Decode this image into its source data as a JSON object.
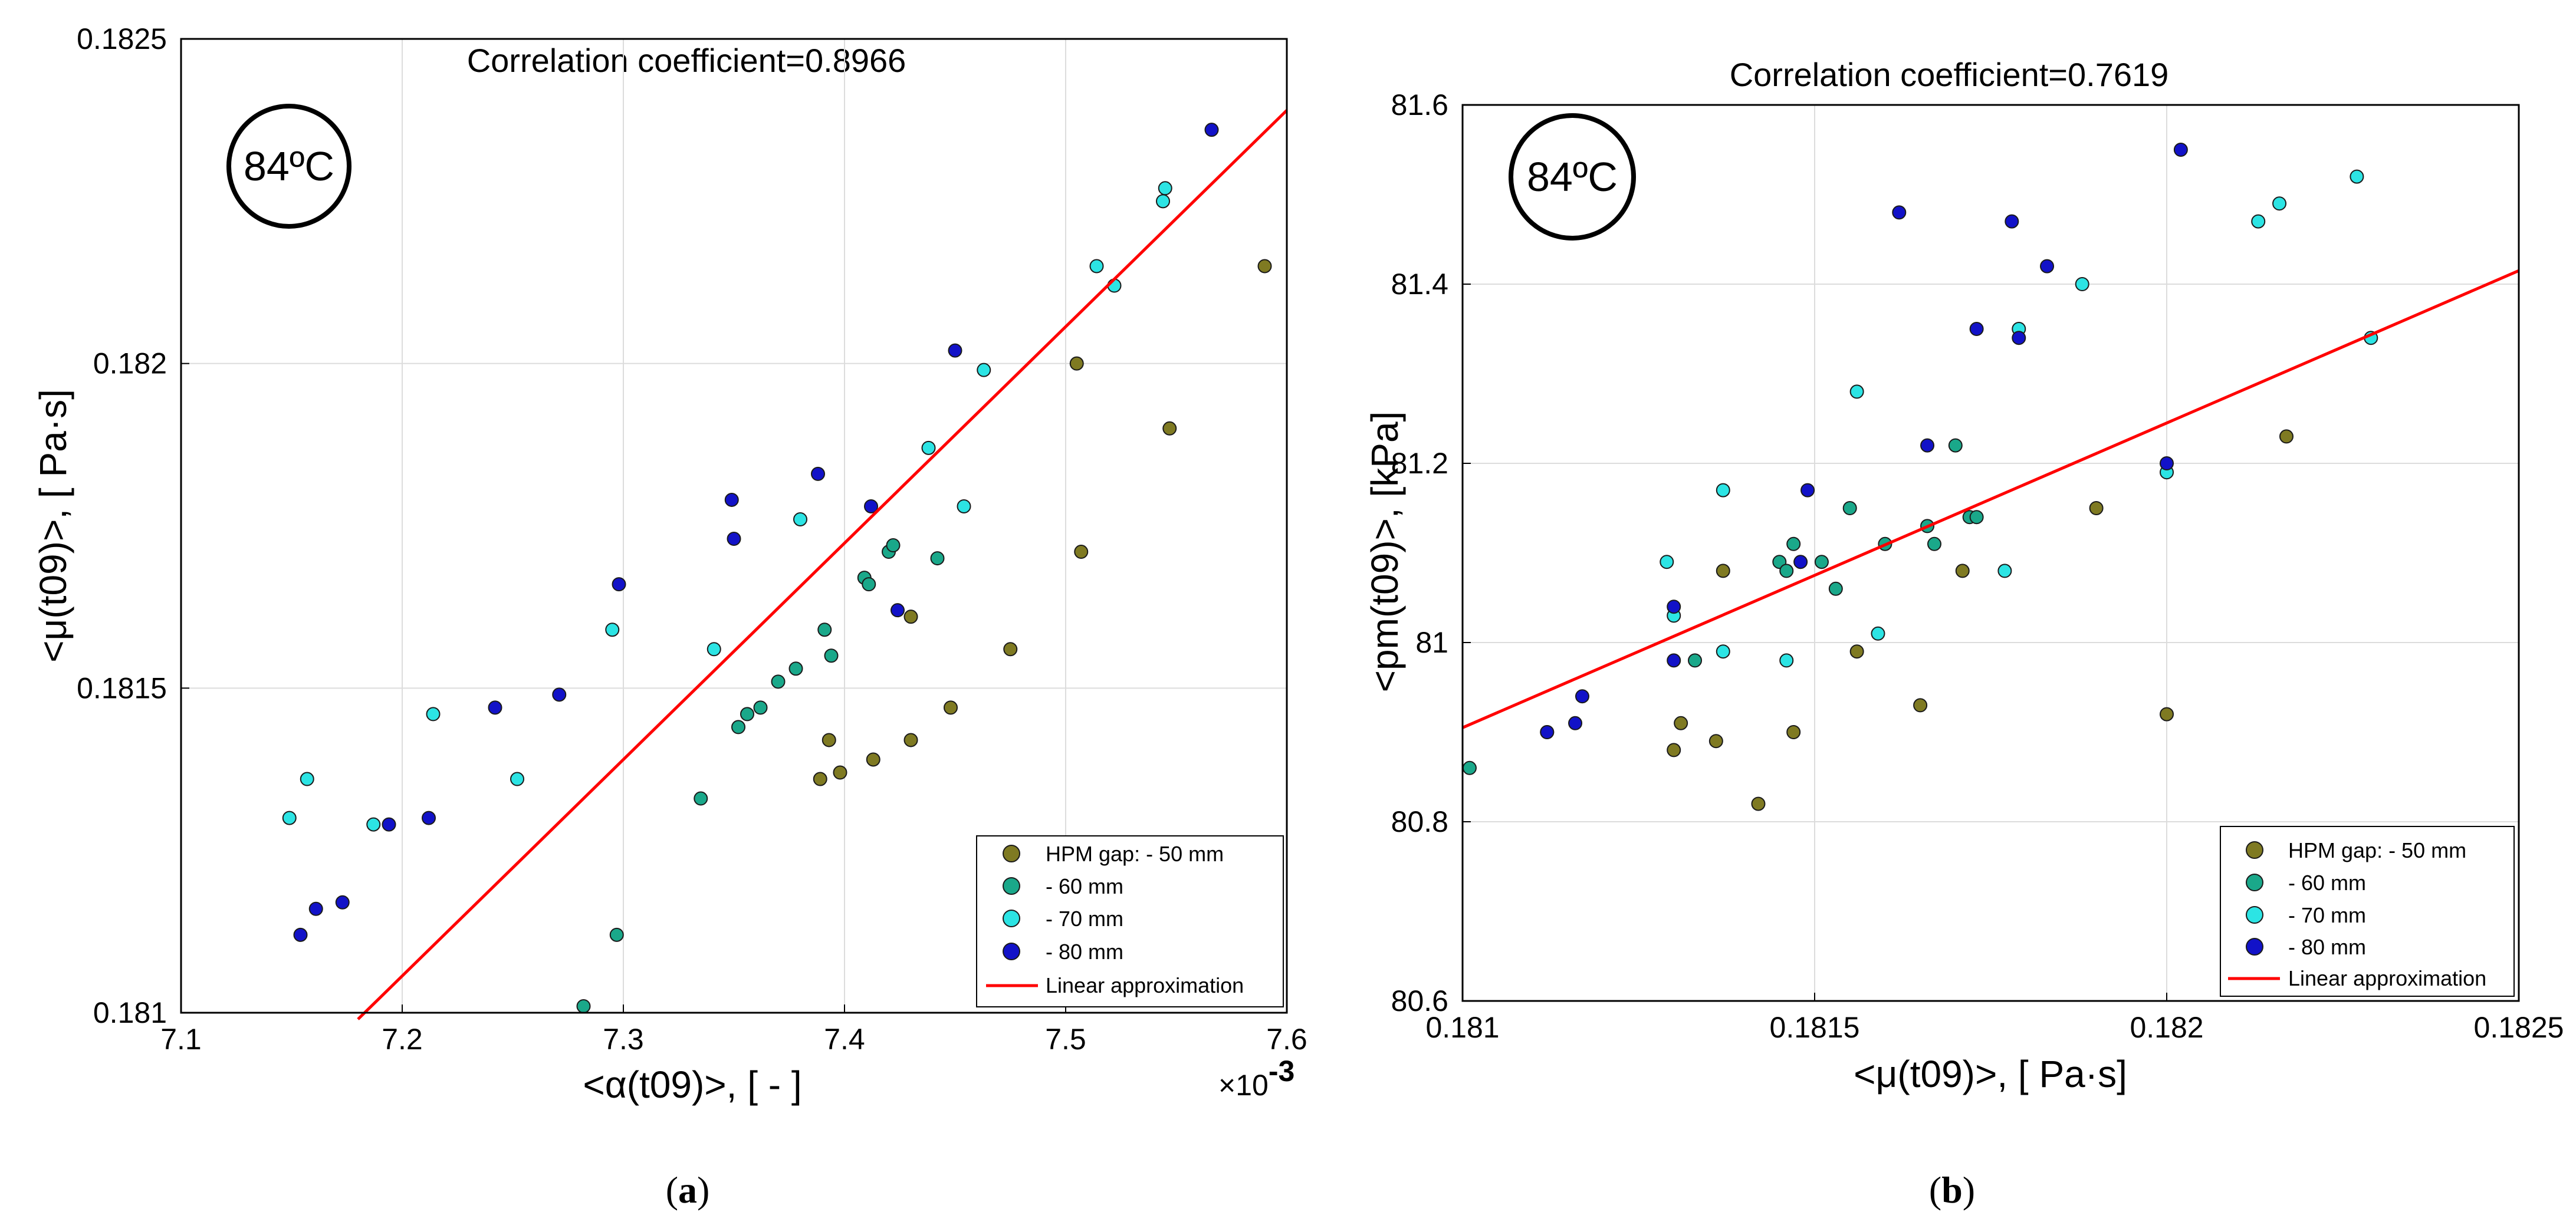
{
  "chart_data": [
    {
      "type": "scatter",
      "title": "Correlation coefficient=0.8966",
      "xlabel": "<α(t09)>, [ - ]",
      "ylabel": "<μ(t09)>, [ Pa·s]",
      "x_multiplier": "×10",
      "x_multiplier_exp": "-3",
      "xlim": [
        7.1,
        7.6
      ],
      "ylim": [
        0.181,
        0.1825
      ],
      "x_tick_labels": [
        "7.1",
        "7.2",
        "7.3",
        "7.4",
        "7.5",
        "7.6"
      ],
      "y_tick_labels": [
        "0.181",
        "0.1815",
        "0.182",
        "0.1825"
      ],
      "grid": true,
      "badge": "84ºC",
      "caption": "a",
      "legend_position": "bottom-right",
      "series": [
        {
          "name": "HPM gap: - 50 mm",
          "color": "#7f7a22",
          "x": [
            7.59,
            7.505,
            7.547,
            7.507,
            7.43,
            7.475,
            7.448,
            7.43,
            7.413,
            7.393,
            7.389,
            7.398
          ],
          "y": [
            0.18215,
            0.182,
            0.1819,
            0.18171,
            0.18161,
            0.18156,
            0.18147,
            0.18142,
            0.18139,
            0.18142,
            0.18136,
            0.18137
          ]
        },
        {
          "name": " - 60 mm",
          "color": "#1aa88a",
          "x": [
            7.282,
            7.297,
            7.335,
            7.352,
            7.356,
            7.362,
            7.37,
            7.378,
            7.391,
            7.394,
            7.409,
            7.411,
            7.42,
            7.422,
            7.442
          ],
          "y": [
            0.18101,
            0.18112,
            0.18133,
            0.18144,
            0.18146,
            0.18147,
            0.18151,
            0.18153,
            0.18159,
            0.18155,
            0.18167,
            0.18166,
            0.18171,
            0.18172,
            0.1817
          ]
        },
        {
          "name": " - 70 mm",
          "color": "#2ce4e4",
          "x": [
            7.149,
            7.157,
            7.187,
            7.214,
            7.252,
            7.295,
            7.341,
            7.38,
            7.438,
            7.454,
            7.463,
            7.514,
            7.522,
            7.544,
            7.545
          ],
          "y": [
            0.1813,
            0.18136,
            0.18129,
            0.18146,
            0.18136,
            0.18159,
            0.18156,
            0.18176,
            0.18187,
            0.18178,
            0.18199,
            0.18215,
            0.18212,
            0.18225,
            0.18227
          ]
        },
        {
          "name": " - 80 mm",
          "color": "#1212c8",
          "x": [
            7.154,
            7.161,
            7.173,
            7.194,
            7.212,
            7.242,
            7.271,
            7.298,
            7.349,
            7.35,
            7.388,
            7.412,
            7.424,
            7.45,
            7.566
          ],
          "y": [
            0.18112,
            0.18116,
            0.18117,
            0.18129,
            0.1813,
            0.18147,
            0.18149,
            0.18166,
            0.18179,
            0.18173,
            0.18183,
            0.18178,
            0.18162,
            0.18202,
            0.18236
          ]
        }
      ],
      "fit": {
        "name": "Linear approximation",
        "color": "#ff0000",
        "x": [
          7.18,
          7.6
        ],
        "y": [
          0.18099,
          0.18239
        ]
      }
    },
    {
      "type": "scatter",
      "title": "Correlation coefficient=0.7619",
      "xlabel": "<μ(t09)>, [ Pa·s]",
      "ylabel": "<pm(t09)>, [kPa]",
      "xlim": [
        0.181,
        0.1825
      ],
      "ylim": [
        80.6,
        81.6
      ],
      "x_tick_labels": [
        "0.181",
        "0.1815",
        "0.182",
        "0.1825"
      ],
      "y_tick_labels": [
        "80.6",
        "80.8",
        "81",
        "81.2",
        "81.4",
        "81.6"
      ],
      "grid": true,
      "badge": "84ºC",
      "caption": "b",
      "legend_position": "bottom-right",
      "series": [
        {
          "name": "HPM gap: - 50 mm",
          "color": "#7f7a22",
          "x": [
            0.1813,
            0.18131,
            0.18136,
            0.18137,
            0.18142,
            0.18147,
            0.18156,
            0.18165,
            0.18171,
            0.1819,
            0.182,
            0.18217
          ],
          "y": [
            80.88,
            80.91,
            80.89,
            81.08,
            80.82,
            80.9,
            80.99,
            80.93,
            81.08,
            81.15,
            80.92,
            81.23
          ]
        },
        {
          "name": " - 60 mm",
          "color": "#1aa88a",
          "x": [
            0.18101,
            0.18112,
            0.18133,
            0.18145,
            0.18146,
            0.18147,
            0.18151,
            0.18153,
            0.18155,
            0.1816,
            0.18166,
            0.18167,
            0.1817,
            0.18172,
            0.18173
          ],
          "y": [
            80.86,
            80.9,
            80.98,
            81.09,
            81.08,
            81.11,
            81.09,
            81.06,
            81.15,
            81.11,
            81.13,
            81.11,
            81.22,
            81.14,
            81.14
          ]
        },
        {
          "name": " - 70 mm",
          "color": "#2ce4e4",
          "x": [
            0.18129,
            0.1813,
            0.18137,
            0.18137,
            0.18146,
            0.18156,
            0.18159,
            0.18177,
            0.18179,
            0.18188,
            0.182,
            0.18213,
            0.18216,
            0.18227,
            0.18229
          ],
          "y": [
            81.09,
            81.03,
            80.99,
            81.17,
            80.98,
            81.28,
            81.01,
            81.08,
            81.35,
            81.4,
            81.19,
            81.47,
            81.49,
            81.52,
            81.34
          ]
        },
        {
          "name": " - 80 mm",
          "color": "#1212c8",
          "x": [
            0.18112,
            0.18116,
            0.18117,
            0.1813,
            0.1813,
            0.18148,
            0.18149,
            0.18162,
            0.18166,
            0.18173,
            0.18178,
            0.18179,
            0.18183,
            0.18202,
            0.182
          ],
          "y": [
            80.9,
            80.91,
            80.94,
            80.98,
            81.04,
            81.09,
            81.17,
            81.48,
            81.22,
            81.35,
            81.47,
            81.34,
            81.42,
            81.55,
            81.2
          ]
        }
      ],
      "fit": {
        "name": "Linear approximation",
        "color": "#ff0000",
        "x": [
          0.181,
          0.1825
        ],
        "y": [
          80.905,
          81.415
        ]
      }
    }
  ]
}
